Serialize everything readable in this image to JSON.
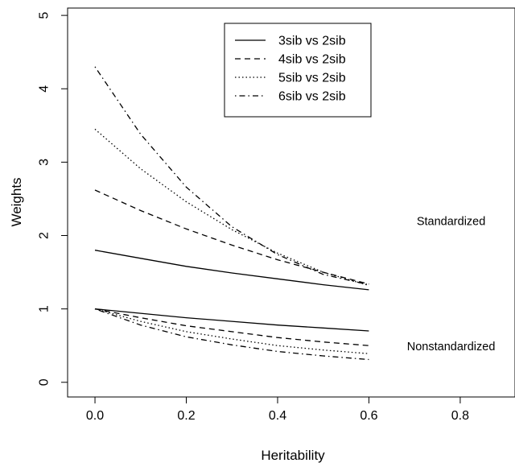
{
  "chart_data": {
    "type": "line",
    "title": "",
    "xlabel": "Heritability",
    "ylabel": "Weights",
    "xlim": [
      -0.06,
      0.92
    ],
    "ylim": [
      -0.2,
      5.1
    ],
    "xticks": [
      0.0,
      0.2,
      0.4,
      0.6,
      0.8
    ],
    "xtick_labels": [
      "0.0",
      "0.2",
      "0.4",
      "0.6",
      "0.8"
    ],
    "yticks": [
      0,
      1,
      2,
      3,
      4,
      5
    ],
    "ytick_labels": [
      "0",
      "1",
      "2",
      "3",
      "4",
      "5"
    ],
    "grid": false,
    "legend_position": "top-center",
    "legend": [
      {
        "label": "3sib vs 2sib",
        "dash": "solid"
      },
      {
        "label": "4sib vs 2sib",
        "dash": "dashed"
      },
      {
        "label": "5sib vs 2sib",
        "dash": "dotted"
      },
      {
        "label": "6sib vs 2sib",
        "dash": "dotdash"
      }
    ],
    "x": [
      0.0,
      0.1,
      0.2,
      0.3,
      0.4,
      0.5,
      0.6
    ],
    "groups": [
      {
        "label": "Standardized",
        "label_position": [
          0.78,
          2.2
        ],
        "series": [
          {
            "legend_index": 0,
            "values": [
              1.8,
              1.69,
              1.58,
              1.49,
              1.41,
              1.33,
              1.26
            ]
          },
          {
            "legend_index": 1,
            "values": [
              2.62,
              2.34,
              2.09,
              1.87,
              1.67,
              1.5,
              1.34
            ]
          },
          {
            "legend_index": 2,
            "values": [
              3.45,
              2.91,
              2.46,
              2.08,
              1.76,
              1.5,
              1.32
            ]
          },
          {
            "legend_index": 3,
            "values": [
              4.3,
              3.38,
              2.66,
              2.12,
              1.74,
              1.47,
              1.33
            ]
          }
        ]
      },
      {
        "label": "Nonstandardized",
        "label_position": [
          0.78,
          0.49
        ],
        "series": [
          {
            "legend_index": 0,
            "values": [
              1.0,
              0.94,
              0.88,
              0.83,
              0.78,
              0.74,
              0.7
            ]
          },
          {
            "legend_index": 1,
            "values": [
              1.0,
              0.88,
              0.77,
              0.69,
              0.61,
              0.55,
              0.5
            ]
          },
          {
            "legend_index": 2,
            "values": [
              1.0,
              0.83,
              0.69,
              0.59,
              0.5,
              0.44,
              0.39
            ]
          },
          {
            "legend_index": 3,
            "values": [
              1.0,
              0.78,
              0.62,
              0.51,
              0.42,
              0.36,
              0.31
            ]
          }
        ]
      }
    ]
  }
}
